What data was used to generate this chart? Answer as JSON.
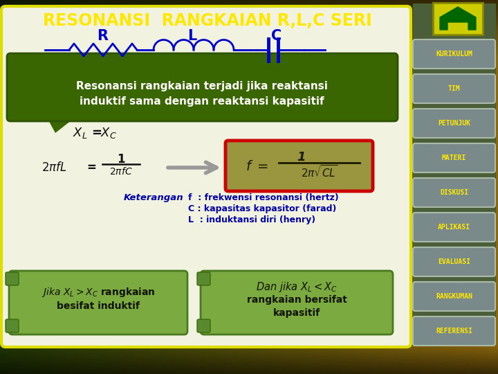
{
  "title": "RESONANSI  RANGKAIAN R,L,C SERI",
  "title_color": "#FFE800",
  "main_panel_bg": "#f0f0e0",
  "main_panel_border": "#dddd00",
  "green_box_color": "#3a6600",
  "green_box_text_line1": "Resonansi rangkaian terjadi jika reaktansi",
  "green_box_text_line2": "induktif sama dengan reaktansi kapasitif",
  "keterangan_text": [
    "f  : frekwensi resonansi (hertz)",
    "C : kapasitas kapasitor (farad)",
    "L  : induktansi diri (henry)"
  ],
  "nav_buttons": [
    "KURIKULUM",
    "TIM",
    "PETUNJUK",
    "MATERI",
    "DISKUSI",
    "APLIKASI",
    "EVALUASI",
    "RANGKUMAN",
    "REFERENSI"
  ],
  "nav_text_color": "#FFE800",
  "circuit_color": "#0000cc",
  "formula_bg": "#9a9640",
  "formula_border": "#cc0000",
  "scroll_color": "#6a9430",
  "text_color": "#111111",
  "blue_text": "#0000aa"
}
